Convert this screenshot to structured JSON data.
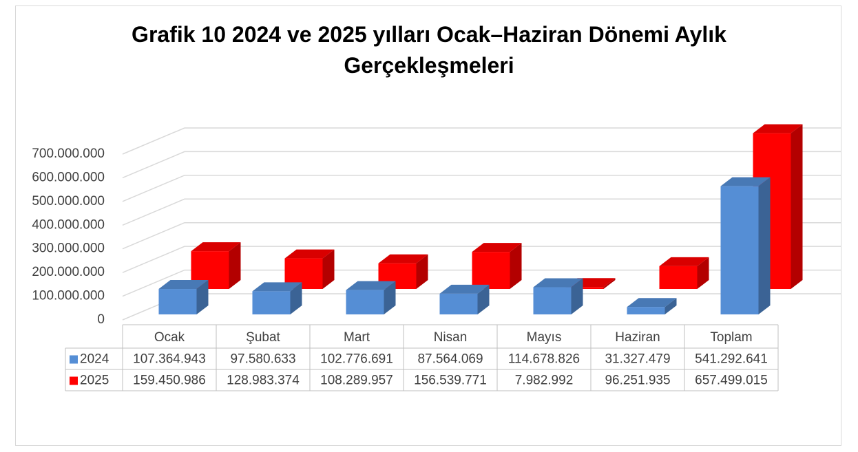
{
  "chart_data": {
    "type": "bar",
    "title": "Grafik 10 2024 ve 2025 yılları Ocak–Haziran Dönemi Aylık Gerçekleşmeleri",
    "categories": [
      "Ocak",
      "Şubat",
      "Mart",
      "Nisan",
      "Mayıs",
      "Haziran",
      "Toplam"
    ],
    "series": [
      {
        "name": "2024",
        "color": "#558ed5",
        "values": [
          107364943,
          97580633,
          102776691,
          87564069,
          114678826,
          31327479,
          541292641
        ],
        "value_labels": [
          "107.364.943",
          "97.580.633",
          "102.776.691",
          "87.564.069",
          "114.678.826",
          "31.327.479",
          "541.292.641"
        ]
      },
      {
        "name": "2025",
        "color": "#ff0000",
        "values": [
          159450986,
          128983374,
          108289957,
          156539771,
          7982992,
          96251935,
          657499015
        ],
        "value_labels": [
          "159.450.986",
          "128.983.374",
          "108.289.957",
          "156.539.771",
          "7.982.992",
          "96.251.935",
          "657.499.015"
        ]
      }
    ],
    "ylim": [
      0,
      700000000
    ],
    "yticks": [
      0,
      {
        "value": 100000000,
        "label": "100.000.000"
      },
      {
        "value": 200000000,
        "label": "200.000.000"
      },
      {
        "value": 300000000,
        "label": "300.000.000"
      },
      {
        "value": 400000000,
        "label": "400.000.000"
      },
      {
        "value": 500000000,
        "label": "500.000.000"
      },
      {
        "value": 600000000,
        "label": "600.000.000"
      },
      {
        "value": 700000000,
        "label": "700.000.000"
      }
    ],
    "grid": true,
    "data_table": true
  }
}
